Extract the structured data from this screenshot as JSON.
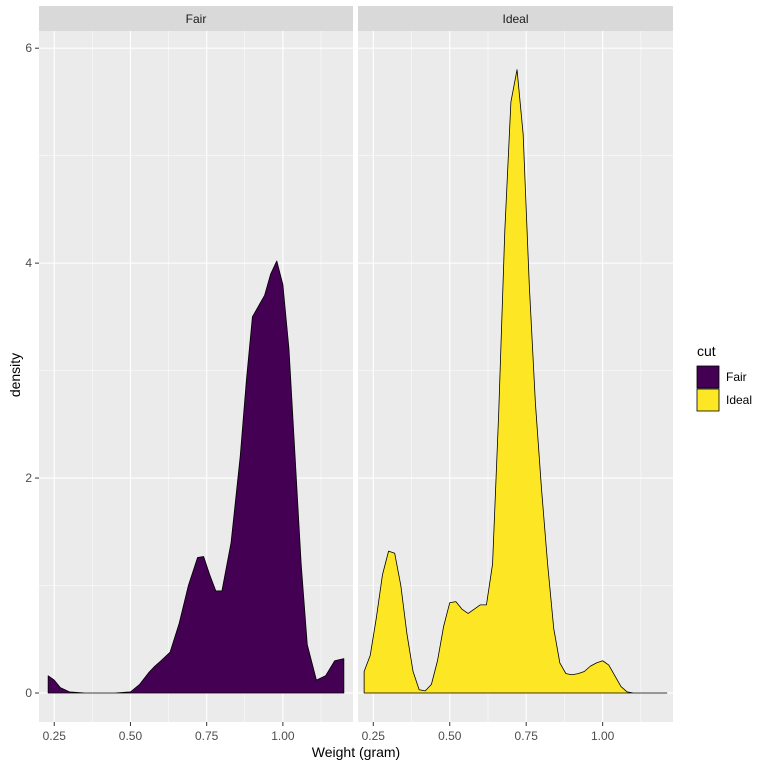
{
  "chart_data": {
    "type": "area",
    "xlabel": "Weight (gram)",
    "ylabel": "density",
    "x_ticks": [
      "0.25",
      "0.50",
      "0.75",
      "1.00"
    ],
    "x_tick_values": [
      0.25,
      0.5,
      0.75,
      1.0
    ],
    "y_ticks": [
      "0",
      "2",
      "4",
      "6"
    ],
    "y_tick_values": [
      0,
      2,
      4,
      6
    ],
    "xlim": [
      0.2,
      1.23
    ],
    "ylim": [
      -0.27,
      6.16
    ],
    "grid": true,
    "legend": {
      "title": "cut",
      "placement": "right",
      "entries": [
        {
          "label": "Fair",
          "color": "#440154"
        },
        {
          "label": "Ideal",
          "color": "#FDE725"
        }
      ]
    },
    "facets": [
      {
        "label": "Fair",
        "fill": "#440154",
        "x": [
          0.23,
          0.25,
          0.27,
          0.3,
          0.35,
          0.4,
          0.45,
          0.5,
          0.53,
          0.56,
          0.58,
          0.6,
          0.63,
          0.66,
          0.69,
          0.72,
          0.74,
          0.76,
          0.78,
          0.8,
          0.83,
          0.86,
          0.88,
          0.9,
          0.92,
          0.94,
          0.96,
          0.98,
          1.0,
          1.02,
          1.04,
          1.06,
          1.08,
          1.11,
          1.14,
          1.17,
          1.2
        ],
        "y": [
          0.16,
          0.12,
          0.05,
          0.01,
          0.0,
          0.0,
          0.0,
          0.01,
          0.08,
          0.19,
          0.25,
          0.3,
          0.38,
          0.65,
          1.0,
          1.26,
          1.27,
          1.1,
          0.95,
          0.95,
          1.4,
          2.2,
          2.9,
          3.5,
          3.6,
          3.7,
          3.9,
          4.02,
          3.8,
          3.2,
          2.2,
          1.2,
          0.45,
          0.12,
          0.16,
          0.3,
          0.32
        ]
      },
      {
        "label": "Ideal",
        "fill": "#FDE725",
        "x": [
          0.22,
          0.24,
          0.26,
          0.28,
          0.3,
          0.32,
          0.34,
          0.36,
          0.38,
          0.4,
          0.42,
          0.44,
          0.46,
          0.48,
          0.5,
          0.52,
          0.54,
          0.56,
          0.58,
          0.6,
          0.62,
          0.64,
          0.66,
          0.68,
          0.7,
          0.72,
          0.74,
          0.76,
          0.78,
          0.8,
          0.82,
          0.84,
          0.86,
          0.88,
          0.9,
          0.92,
          0.94,
          0.96,
          0.98,
          1.0,
          1.02,
          1.04,
          1.06,
          1.08,
          1.1,
          1.14,
          1.18,
          1.21
        ],
        "y": [
          0.2,
          0.35,
          0.7,
          1.1,
          1.32,
          1.3,
          1.0,
          0.55,
          0.2,
          0.03,
          0.02,
          0.08,
          0.3,
          0.62,
          0.84,
          0.85,
          0.78,
          0.74,
          0.78,
          0.82,
          0.82,
          1.2,
          2.6,
          4.3,
          5.5,
          5.8,
          5.2,
          3.8,
          2.7,
          1.9,
          1.2,
          0.6,
          0.28,
          0.18,
          0.17,
          0.18,
          0.2,
          0.25,
          0.28,
          0.3,
          0.26,
          0.16,
          0.06,
          0.01,
          0.0,
          0.0,
          0.0,
          0.0
        ]
      }
    ]
  }
}
